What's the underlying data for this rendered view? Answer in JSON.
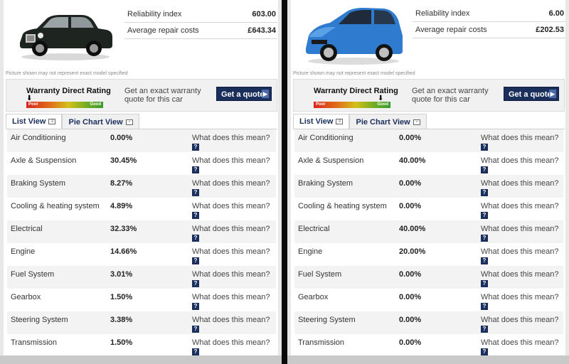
{
  "left": {
    "car_image": "black-vintage-saloon-car",
    "stats": [
      {
        "label": "Reliability index",
        "value": "603.00"
      },
      {
        "label": "Average repair costs",
        "value": "£643.34"
      }
    ],
    "disclaimer": "Picture shown may not represent exact model specified",
    "rating": {
      "title": "Warranty Direct Rating",
      "poor_label": "Poor",
      "good_label": "Good",
      "level": 0.0,
      "prompt": "Get an exact warranty quote for this car",
      "quote_button": "Get a quote"
    },
    "tabs": [
      {
        "label": "List View",
        "active": true
      },
      {
        "label": "Pie Chart View",
        "active": false
      }
    ],
    "rows": [
      {
        "system": "Air Conditioning",
        "percent": "0.00%",
        "help_text": "What does this mean?"
      },
      {
        "system": "Axle & Suspension",
        "percent": "30.45%",
        "help_text": "What does this mean?"
      },
      {
        "system": "Braking System",
        "percent": "8.27%",
        "help_text": "What does this mean?"
      },
      {
        "system": "Cooling & heating system",
        "percent": "4.89%",
        "help_text": "What does this mean?"
      },
      {
        "system": "Electrical",
        "percent": "32.33%",
        "help_text": "What does this mean?"
      },
      {
        "system": "Engine",
        "percent": "14.66%",
        "help_text": "What does this mean?"
      },
      {
        "system": "Fuel System",
        "percent": "3.01%",
        "help_text": "What does this mean?"
      },
      {
        "system": "Gearbox",
        "percent": "1.50%",
        "help_text": "What does this mean?"
      },
      {
        "system": "Steering System",
        "percent": "3.38%",
        "help_text": "What does this mean?"
      },
      {
        "system": "Transmission",
        "percent": "1.50%",
        "help_text": "What does this mean?"
      }
    ]
  },
  "right": {
    "car_image": "blue-hatchback-car",
    "stats": [
      {
        "label": "Reliability index",
        "value": "6.00"
      },
      {
        "label": "Average repair costs",
        "value": "£202.53"
      }
    ],
    "disclaimer": "Picture shown may not represent exact model specified",
    "rating": {
      "title": "Warranty Direct Rating",
      "poor_label": "Poor",
      "good_label": "Good",
      "level": 0.9,
      "prompt": "Get an exact warranty quote for this car",
      "quote_button": "Get a quote"
    },
    "tabs": [
      {
        "label": "List View",
        "active": true
      },
      {
        "label": "Pie Chart View",
        "active": false
      }
    ],
    "rows": [
      {
        "system": "Air Conditioning",
        "percent": "0.00%",
        "help_text": "What does this mean?"
      },
      {
        "system": "Axle & Suspension",
        "percent": "40.00%",
        "help_text": "What does this mean?"
      },
      {
        "system": "Braking System",
        "percent": "0.00%",
        "help_text": "What does this mean?"
      },
      {
        "system": "Cooling & heating system",
        "percent": "0.00%",
        "help_text": "What does this mean?"
      },
      {
        "system": "Electrical",
        "percent": "40.00%",
        "help_text": "What does this mean?"
      },
      {
        "system": "Engine",
        "percent": "20.00%",
        "help_text": "What does this mean?"
      },
      {
        "system": "Fuel System",
        "percent": "0.00%",
        "help_text": "What does this mean?"
      },
      {
        "system": "Gearbox",
        "percent": "0.00%",
        "help_text": "What does this mean?"
      },
      {
        "system": "Steering System",
        "percent": "0.00%",
        "help_text": "What does this mean?"
      },
      {
        "system": "Transmission",
        "percent": "0.00%",
        "help_text": "What does this mean?"
      }
    ]
  },
  "colors": {
    "brand_navy": "#1b2f5c",
    "row_alt": "#f3f3f3",
    "divider": "#0a0a0a"
  }
}
